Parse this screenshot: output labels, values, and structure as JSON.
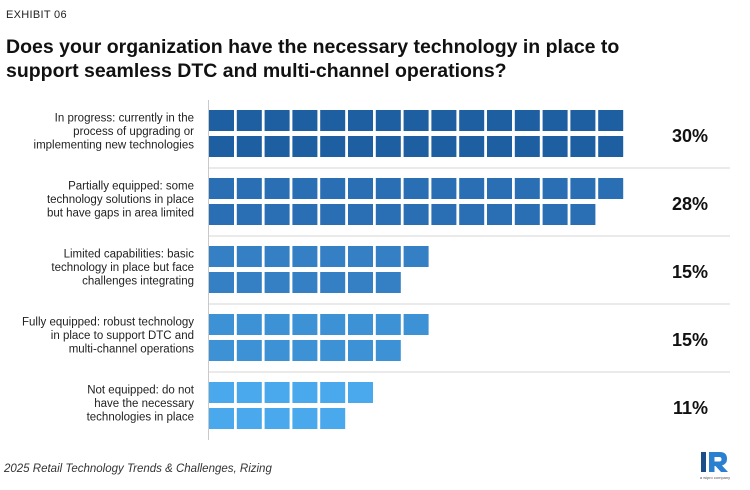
{
  "exhibit": "EXHIBIT 06",
  "title_line1": "Does your organization have the necessary technology in place to",
  "title_line2": "support seamless DTC and multi-channel operations?",
  "source": "2025 Retail Technology Trends & Challenges, Rizing",
  "logo_text": "a wipro company",
  "chart_data": {
    "type": "bar",
    "orientation": "horizontal",
    "title": "Does your organization have the necessary technology in place to support seamless DTC and multi-channel operations?",
    "unit": "%",
    "categories": [
      [
        "In progress: currently in the",
        "process of upgrading or",
        "implementing new technologies"
      ],
      [
        "Partially equipped: some",
        "technology solutions in place",
        "but have gaps in area limited"
      ],
      [
        "Limited capabilities: basic",
        "technology in place but face",
        "challenges integrating"
      ],
      [
        "Fully equipped: robust technology",
        "in place to support DTC and",
        "multi-channel operations"
      ],
      [
        "Not equipped: do not",
        "have the necessary",
        "technologies in place"
      ]
    ],
    "values": [
      30,
      28,
      15,
      15,
      11
    ],
    "value_labels": [
      "30%",
      "28%",
      "15%",
      "15%",
      "11%"
    ],
    "colors": [
      "#1d5fa0",
      "#2a6fb3",
      "#3580c4",
      "#3d92d6",
      "#4aa8ec"
    ],
    "grid": false,
    "legend": "none"
  }
}
